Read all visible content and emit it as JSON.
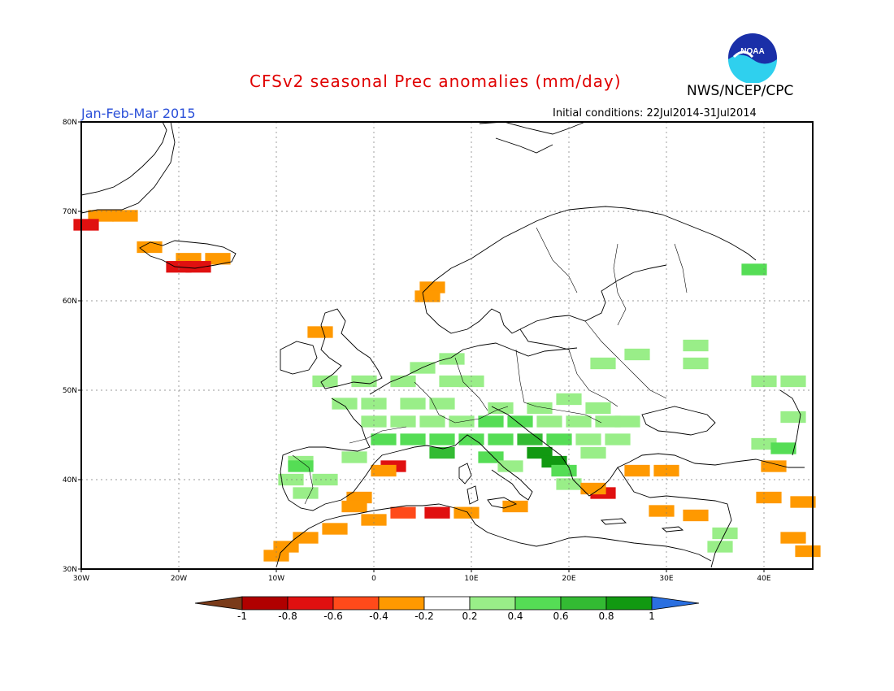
{
  "header": {
    "title": "CFSv2 seasonal Prec anomalies (mm/day)",
    "agency": "NWS/NCEP/CPC",
    "season": "Jan-Feb-Mar 2015",
    "initial_conditions": "Initial conditions: 22Jul2014-31Jul2014"
  },
  "logo": {
    "icon": "noaa-logo",
    "text": "NOAA"
  },
  "map": {
    "lon_range": [
      -30,
      45
    ],
    "lat_range": [
      30,
      80
    ],
    "lon_ticks": [
      {
        "value": -30,
        "label": "30W"
      },
      {
        "value": -20,
        "label": "20W"
      },
      {
        "value": -10,
        "label": "10W"
      },
      {
        "value": 0,
        "label": "0"
      },
      {
        "value": 10,
        "label": "10E"
      },
      {
        "value": 20,
        "label": "20E"
      },
      {
        "value": 30,
        "label": "30E"
      },
      {
        "value": 40,
        "label": "40E"
      }
    ],
    "lat_ticks": [
      {
        "value": 30,
        "label": "30N"
      },
      {
        "value": 40,
        "label": "40N"
      },
      {
        "value": 50,
        "label": "50N"
      },
      {
        "value": 60,
        "label": "60N"
      },
      {
        "value": 70,
        "label": "70N"
      },
      {
        "value": 80,
        "label": "80N"
      }
    ],
    "grid": true
  },
  "colorbar": {
    "labels": [
      "-1",
      "-0.8",
      "-0.6",
      "-0.4",
      "-0.2",
      "0.2",
      "0.4",
      "0.6",
      "0.8",
      "1"
    ],
    "colors": [
      "#7a3b1a",
      "#b00000",
      "#e01010",
      "#ff4a1a",
      "#ff9900",
      "#ffffff",
      "#99ee88",
      "#55dd55",
      "#33bb33",
      "#119911",
      "#2a6fe0"
    ]
  },
  "chart_data": {
    "type": "heatmap",
    "variable": "Prec anomalies (mm/day)",
    "cells": [
      {
        "lon": -28,
        "lat": 69.5,
        "value": -0.3
      },
      {
        "lon": -25.5,
        "lat": 69.5,
        "value": -0.3
      },
      {
        "lon": -29.5,
        "lat": 68.5,
        "value": -0.7
      },
      {
        "lon": -23,
        "lat": 66,
        "value": -0.4
      },
      {
        "lon": -19,
        "lat": 64.7,
        "value": -0.3
      },
      {
        "lon": -16,
        "lat": 64.7,
        "value": -0.3
      },
      {
        "lon": -20,
        "lat": 63.8,
        "value": -0.7
      },
      {
        "lon": -18,
        "lat": 63.8,
        "value": -0.7
      },
      {
        "lon": 6,
        "lat": 61.5,
        "value": -0.3
      },
      {
        "lon": 5.5,
        "lat": 60.5,
        "value": -0.3
      },
      {
        "lon": -5.5,
        "lat": 56.5,
        "value": -0.3
      },
      {
        "lon": -5,
        "lat": 51,
        "value": 0.3
      },
      {
        "lon": -1,
        "lat": 51,
        "value": 0.3
      },
      {
        "lon": 3,
        "lat": 51,
        "value": 0.3
      },
      {
        "lon": 5,
        "lat": 52.5,
        "value": 0.3
      },
      {
        "lon": 8,
        "lat": 53.5,
        "value": 0.3
      },
      {
        "lon": 8,
        "lat": 51,
        "value": 0.3
      },
      {
        "lon": 10,
        "lat": 51,
        "value": 0.3
      },
      {
        "lon": 23.5,
        "lat": 53,
        "value": 0.3
      },
      {
        "lon": 27,
        "lat": 54,
        "value": 0.3
      },
      {
        "lon": 33,
        "lat": 55,
        "value": 0.3
      },
      {
        "lon": 33,
        "lat": 53,
        "value": 0.3
      },
      {
        "lon": 40,
        "lat": 51,
        "value": 0.3
      },
      {
        "lon": 43,
        "lat": 51,
        "value": 0.3
      },
      {
        "lon": 39,
        "lat": 63.5,
        "value": 0.4
      },
      {
        "lon": -3,
        "lat": 48.5,
        "value": 0.3
      },
      {
        "lon": 0,
        "lat": 48.5,
        "value": 0.3
      },
      {
        "lon": 4,
        "lat": 48.5,
        "value": 0.3
      },
      {
        "lon": 7,
        "lat": 48.5,
        "value": 0.3
      },
      {
        "lon": 13,
        "lat": 48,
        "value": 0.3
      },
      {
        "lon": 17,
        "lat": 48,
        "value": 0.3
      },
      {
        "lon": 20,
        "lat": 49,
        "value": 0.3
      },
      {
        "lon": 23,
        "lat": 48,
        "value": 0.3
      },
      {
        "lon": 0,
        "lat": 46.5,
        "value": 0.3
      },
      {
        "lon": 3,
        "lat": 46.5,
        "value": 0.3
      },
      {
        "lon": 6,
        "lat": 46.5,
        "value": 0.3
      },
      {
        "lon": 9,
        "lat": 46.5,
        "value": 0.3
      },
      {
        "lon": 12,
        "lat": 46.5,
        "value": 0.4
      },
      {
        "lon": 15,
        "lat": 46.5,
        "value": 0.4
      },
      {
        "lon": 18,
        "lat": 46.5,
        "value": 0.3
      },
      {
        "lon": 21,
        "lat": 46.5,
        "value": 0.3
      },
      {
        "lon": 24,
        "lat": 46.5,
        "value": 0.3
      },
      {
        "lon": 26,
        "lat": 46.5,
        "value": 0.3
      },
      {
        "lon": 1,
        "lat": 44.5,
        "value": 0.4
      },
      {
        "lon": 4,
        "lat": 44.5,
        "value": 0.4
      },
      {
        "lon": 7,
        "lat": 44.5,
        "value": 0.5
      },
      {
        "lon": 10,
        "lat": 44.5,
        "value": 0.4
      },
      {
        "lon": 13,
        "lat": 44.5,
        "value": 0.5
      },
      {
        "lon": 16,
        "lat": 44.5,
        "value": 0.6
      },
      {
        "lon": 19,
        "lat": 44.5,
        "value": 0.4
      },
      {
        "lon": 22,
        "lat": 44.5,
        "value": 0.3
      },
      {
        "lon": 25,
        "lat": 44.5,
        "value": 0.3
      },
      {
        "lon": 7,
        "lat": 43,
        "value": 0.7
      },
      {
        "lon": 17,
        "lat": 43,
        "value": 0.8
      },
      {
        "lon": 18.5,
        "lat": 42,
        "value": 0.8
      },
      {
        "lon": 19.5,
        "lat": 41,
        "value": 0.5
      },
      {
        "lon": 12,
        "lat": 42.5,
        "value": 0.4
      },
      {
        "lon": 14,
        "lat": 41.5,
        "value": 0.3
      },
      {
        "lon": 20,
        "lat": 39.5,
        "value": 0.3
      },
      {
        "lon": 22.5,
        "lat": 43,
        "value": 0.3
      },
      {
        "lon": 40,
        "lat": 44,
        "value": 0.3
      },
      {
        "lon": 42,
        "lat": 43.5,
        "value": 0.4
      },
      {
        "lon": 43,
        "lat": 47,
        "value": 0.3
      },
      {
        "lon": -7.5,
        "lat": 42,
        "value": 0.3
      },
      {
        "lon": -8.5,
        "lat": 40,
        "value": 0.3
      },
      {
        "lon": -7,
        "lat": 38.5,
        "value": 0.3
      },
      {
        "lon": -5,
        "lat": 40,
        "value": 0.3
      },
      {
        "lon": -7.5,
        "lat": 41.5,
        "value": 0.5
      },
      {
        "lon": -2,
        "lat": 42.5,
        "value": 0.3
      },
      {
        "lon": 2,
        "lat": 41.5,
        "value": -0.7
      },
      {
        "lon": 1,
        "lat": 41,
        "value": -0.3
      },
      {
        "lon": -1.5,
        "lat": 38,
        "value": -0.3
      },
      {
        "lon": -2,
        "lat": 37,
        "value": -0.3
      },
      {
        "lon": -4,
        "lat": 34.5,
        "value": -0.3
      },
      {
        "lon": -7,
        "lat": 33.5,
        "value": -0.3
      },
      {
        "lon": -9,
        "lat": 32.5,
        "value": -0.3
      },
      {
        "lon": -10,
        "lat": 31.5,
        "value": -0.3
      },
      {
        "lon": 0,
        "lat": 35.5,
        "value": -0.3
      },
      {
        "lon": 3,
        "lat": 36.3,
        "value": -0.5
      },
      {
        "lon": 6.5,
        "lat": 36.3,
        "value": -0.7
      },
      {
        "lon": 9.5,
        "lat": 36.3,
        "value": -0.3
      },
      {
        "lon": 14.5,
        "lat": 37,
        "value": -0.3
      },
      {
        "lon": 23.5,
        "lat": 38.5,
        "value": -0.7
      },
      {
        "lon": 22.5,
        "lat": 39,
        "value": -0.3
      },
      {
        "lon": 27,
        "lat": 41,
        "value": -0.3
      },
      {
        "lon": 30,
        "lat": 41,
        "value": -0.3
      },
      {
        "lon": 29.5,
        "lat": 36.5,
        "value": -0.3
      },
      {
        "lon": 33,
        "lat": 36,
        "value": -0.3
      },
      {
        "lon": 36,
        "lat": 34,
        "value": 0.3
      },
      {
        "lon": 35.5,
        "lat": 32.5,
        "value": 0.3
      },
      {
        "lon": 41,
        "lat": 41.5,
        "value": -0.3
      },
      {
        "lon": 40.5,
        "lat": 38,
        "value": -0.3
      },
      {
        "lon": 44,
        "lat": 37.5,
        "value": -0.3
      },
      {
        "lon": 43,
        "lat": 33.5,
        "value": -0.3
      },
      {
        "lon": 44.5,
        "lat": 32,
        "value": -0.3
      }
    ]
  }
}
